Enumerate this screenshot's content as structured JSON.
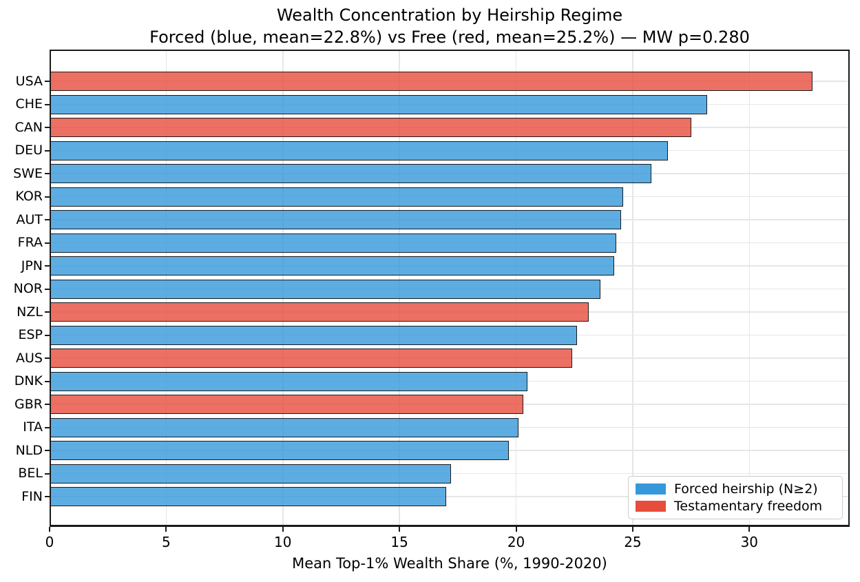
{
  "chart_data": {
    "type": "bar",
    "orientation": "horizontal",
    "title": "Wealth Concentration by Heirship Regime",
    "subtitle": "Forced (blue, mean=22.8%) vs Free (red, mean=25.2%) — MW p=0.280",
    "xlabel": "Mean Top-1% Wealth Share (%, 1990-2020)",
    "ylabel": "",
    "xlim": [
      0,
      34.3
    ],
    "xticks": [
      0,
      5,
      10,
      15,
      20,
      25,
      30
    ],
    "grid": true,
    "legend_position": "lower right",
    "legend": [
      {
        "key": "forced",
        "label": "Forced heirship (N≥2)",
        "swatch_color": "#3498db",
        "bar_fill": "rgba(52,152,219,0.8)"
      },
      {
        "key": "free",
        "label": "Testamentary freedom",
        "swatch_color": "#e74c3c",
        "bar_fill": "rgba(231,76,60,0.8)"
      }
    ],
    "bars": [
      {
        "country": "USA",
        "value": 32.7,
        "regime": "free"
      },
      {
        "country": "CHE",
        "value": 28.2,
        "regime": "forced"
      },
      {
        "country": "CAN",
        "value": 27.5,
        "regime": "free"
      },
      {
        "country": "DEU",
        "value": 26.5,
        "regime": "forced"
      },
      {
        "country": "SWE",
        "value": 25.8,
        "regime": "forced"
      },
      {
        "country": "KOR",
        "value": 24.6,
        "regime": "forced"
      },
      {
        "country": "AUT",
        "value": 24.5,
        "regime": "forced"
      },
      {
        "country": "FRA",
        "value": 24.3,
        "regime": "forced"
      },
      {
        "country": "JPN",
        "value": 24.2,
        "regime": "forced"
      },
      {
        "country": "NOR",
        "value": 23.6,
        "regime": "forced"
      },
      {
        "country": "NZL",
        "value": 23.1,
        "regime": "free"
      },
      {
        "country": "ESP",
        "value": 22.6,
        "regime": "forced"
      },
      {
        "country": "AUS",
        "value": 22.4,
        "regime": "free"
      },
      {
        "country": "DNK",
        "value": 20.5,
        "regime": "forced"
      },
      {
        "country": "GBR",
        "value": 20.3,
        "regime": "free"
      },
      {
        "country": "ITA",
        "value": 20.1,
        "regime": "forced"
      },
      {
        "country": "NLD",
        "value": 19.7,
        "regime": "forced"
      },
      {
        "country": "BEL",
        "value": 17.2,
        "regime": "forced"
      },
      {
        "country": "FIN",
        "value": 17.0,
        "regime": "forced"
      }
    ]
  },
  "colors": {
    "background": "#ffffff",
    "bar_edge": "#1a1a1a",
    "spine": "#1a1a1a",
    "grid": "#e6e6e6",
    "text": "#000000",
    "legend_border": "#cccccc"
  }
}
